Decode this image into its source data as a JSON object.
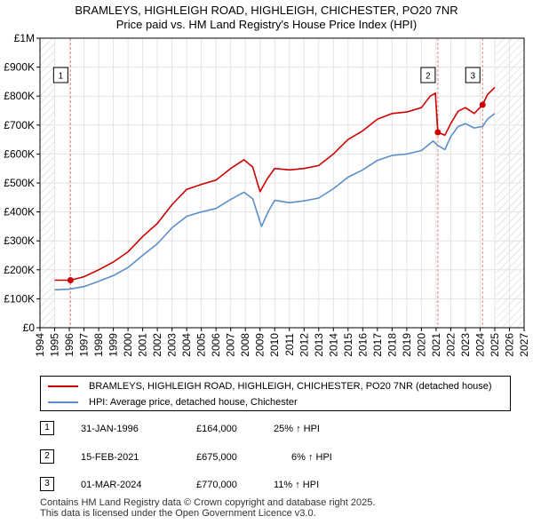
{
  "title_line1": "BRAMLEYS, HIGHLEIGH ROAD, HIGHLEIGH, CHICHESTER, PO20 7NR",
  "title_line2": "Price paid vs. HM Land Registry's House Price Index (HPI)",
  "colors": {
    "property_line": "#cc0000",
    "hpi_line": "#5b8ec9",
    "grid": "#e3e3e3",
    "marker_line": "#dd8888",
    "hatch": "#cccccc"
  },
  "chart_data": {
    "type": "line",
    "title": "Price paid vs. HM Land Registry's House Price Index (HPI)",
    "xlim": [
      1994,
      2027
    ],
    "ylim": [
      0,
      1000000
    ],
    "x_ticks": [
      1994,
      1995,
      1996,
      1997,
      1998,
      1999,
      2000,
      2001,
      2002,
      2003,
      2004,
      2005,
      2006,
      2007,
      2008,
      2009,
      2010,
      2011,
      2012,
      2013,
      2014,
      2015,
      2016,
      2017,
      2018,
      2019,
      2020,
      2021,
      2022,
      2023,
      2024,
      2025,
      2026,
      2027
    ],
    "y_ticks": [
      0,
      100000,
      200000,
      300000,
      400000,
      500000,
      600000,
      700000,
      800000,
      900000,
      1000000
    ],
    "y_tick_labels": [
      "£0",
      "£100K",
      "£200K",
      "£300K",
      "£400K",
      "£500K",
      "£600K",
      "£700K",
      "£800K",
      "£900K",
      "£1M"
    ],
    "data_range": [
      1995.0,
      2025.1
    ],
    "series": [
      {
        "name": "BRAMLEYS, HIGHLEIGH ROAD, HIGHLEIGH, CHICHESTER, PO20 7NR (detached house)",
        "color": "#cc0000",
        "points": [
          [
            1995.0,
            164000
          ],
          [
            1996.08,
            164000
          ],
          [
            1997.0,
            176000
          ],
          [
            1998.0,
            200000
          ],
          [
            1999.0,
            227000
          ],
          [
            2000.0,
            262000
          ],
          [
            2001.0,
            315000
          ],
          [
            2002.0,
            360000
          ],
          [
            2003.0,
            425000
          ],
          [
            2004.0,
            478000
          ],
          [
            2005.0,
            495000
          ],
          [
            2006.0,
            510000
          ],
          [
            2007.0,
            550000
          ],
          [
            2007.9,
            580000
          ],
          [
            2008.5,
            555000
          ],
          [
            2009.0,
            470000
          ],
          [
            2009.5,
            515000
          ],
          [
            2010.0,
            550000
          ],
          [
            2011.0,
            545000
          ],
          [
            2012.0,
            550000
          ],
          [
            2013.0,
            560000
          ],
          [
            2014.0,
            600000
          ],
          [
            2015.0,
            650000
          ],
          [
            2016.0,
            680000
          ],
          [
            2017.0,
            720000
          ],
          [
            2018.0,
            740000
          ],
          [
            2019.0,
            745000
          ],
          [
            2020.0,
            760000
          ],
          [
            2020.6,
            800000
          ],
          [
            2020.95,
            810000
          ],
          [
            2021.0,
            770000
          ],
          [
            2021.12,
            675000
          ],
          [
            2021.6,
            665000
          ],
          [
            2022.0,
            705000
          ],
          [
            2022.5,
            748000
          ],
          [
            2023.0,
            760000
          ],
          [
            2023.6,
            740000
          ],
          [
            2024.17,
            770000
          ],
          [
            2024.5,
            805000
          ],
          [
            2025.0,
            830000
          ]
        ]
      },
      {
        "name": "HPI: Average price, detached house, Chichester",
        "color": "#5b8ec9",
        "points": [
          [
            1995.0,
            131000
          ],
          [
            1996.0,
            133000
          ],
          [
            1997.0,
            142000
          ],
          [
            1998.0,
            160000
          ],
          [
            1999.0,
            180000
          ],
          [
            2000.0,
            208000
          ],
          [
            2001.0,
            250000
          ],
          [
            2002.0,
            290000
          ],
          [
            2003.0,
            345000
          ],
          [
            2004.0,
            385000
          ],
          [
            2005.0,
            400000
          ],
          [
            2006.0,
            412000
          ],
          [
            2007.0,
            443000
          ],
          [
            2007.9,
            468000
          ],
          [
            2008.5,
            445000
          ],
          [
            2009.1,
            350000
          ],
          [
            2009.6,
            405000
          ],
          [
            2010.0,
            440000
          ],
          [
            2011.0,
            432000
          ],
          [
            2012.0,
            438000
          ],
          [
            2013.0,
            448000
          ],
          [
            2014.0,
            480000
          ],
          [
            2015.0,
            520000
          ],
          [
            2016.0,
            545000
          ],
          [
            2017.0,
            578000
          ],
          [
            2018.0,
            595000
          ],
          [
            2019.0,
            600000
          ],
          [
            2020.0,
            612000
          ],
          [
            2020.8,
            645000
          ],
          [
            2021.1,
            630000
          ],
          [
            2021.6,
            615000
          ],
          [
            2022.0,
            660000
          ],
          [
            2022.5,
            695000
          ],
          [
            2023.0,
            705000
          ],
          [
            2023.6,
            690000
          ],
          [
            2024.17,
            695000
          ],
          [
            2024.5,
            720000
          ],
          [
            2025.0,
            740000
          ]
        ]
      }
    ],
    "sales": [
      {
        "label": "1",
        "x": 1996.08,
        "y": 164000
      },
      {
        "label": "2",
        "x": 2021.12,
        "y": 675000
      },
      {
        "label": "3",
        "x": 2024.17,
        "y": 770000
      }
    ]
  },
  "legend": {
    "property": "BRAMLEYS, HIGHLEIGH ROAD, HIGHLEIGH, CHICHESTER, PO20 7NR (detached house)",
    "hpi": "HPI: Average price, detached house, Chichester"
  },
  "transactions": [
    {
      "num": "1",
      "date": "31-JAN-1996",
      "price": "£164,000",
      "hpi": "25% ↑ HPI"
    },
    {
      "num": "2",
      "date": "15-FEB-2021",
      "price": "£675,000",
      "hpi": "6% ↑ HPI"
    },
    {
      "num": "3",
      "date": "01-MAR-2024",
      "price": "£770,000",
      "hpi": "11% ↑ HPI"
    }
  ],
  "footer": {
    "line1": "Contains HM Land Registry data © Crown copyright and database right 2025.",
    "line2": "This data is licensed under the Open Government Licence v3.0."
  }
}
